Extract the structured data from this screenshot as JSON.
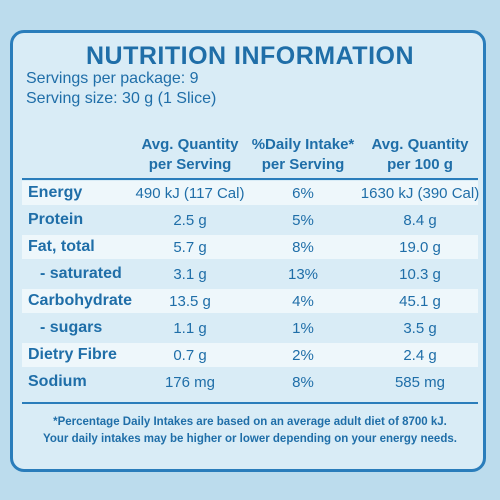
{
  "header": {
    "title": "NUTRITION INFORMATION",
    "servings": "Servings per package: 9",
    "serving_size": "Serving size: 30 g (1 Slice)"
  },
  "table": {
    "columns": [
      "Avg. Quantity\nper Serving",
      "%Daily Intake*\nper Serving",
      "Avg. Quantity\nper 100 g"
    ],
    "rows": [
      [
        "Energy",
        "490 kJ (117 Cal)",
        "6%",
        "1630 kJ (390 Cal)"
      ],
      [
        "Protein",
        "2.5 g",
        "5%",
        "8.4 g"
      ],
      [
        "Fat, total",
        "5.7 g",
        "8%",
        "19.0 g"
      ],
      [
        "- saturated",
        "3.1 g",
        "13%",
        "10.3 g"
      ],
      [
        "Carbohydrate",
        "13.5 g",
        "4%",
        "45.1 g"
      ],
      [
        "- sugars",
        "1.1 g",
        "1%",
        "3.5 g"
      ],
      [
        "Dietry Fibre",
        "0.7 g",
        "2%",
        "2.4 g"
      ],
      [
        "Sodium",
        "176 mg",
        "8%",
        "585 mg"
      ]
    ]
  },
  "footnote": [
    "*Percentage Daily Intakes are based on an average adult diet of 8700 kJ.",
    "Your daily intakes may be higher or lower depending on your energy needs."
  ]
}
